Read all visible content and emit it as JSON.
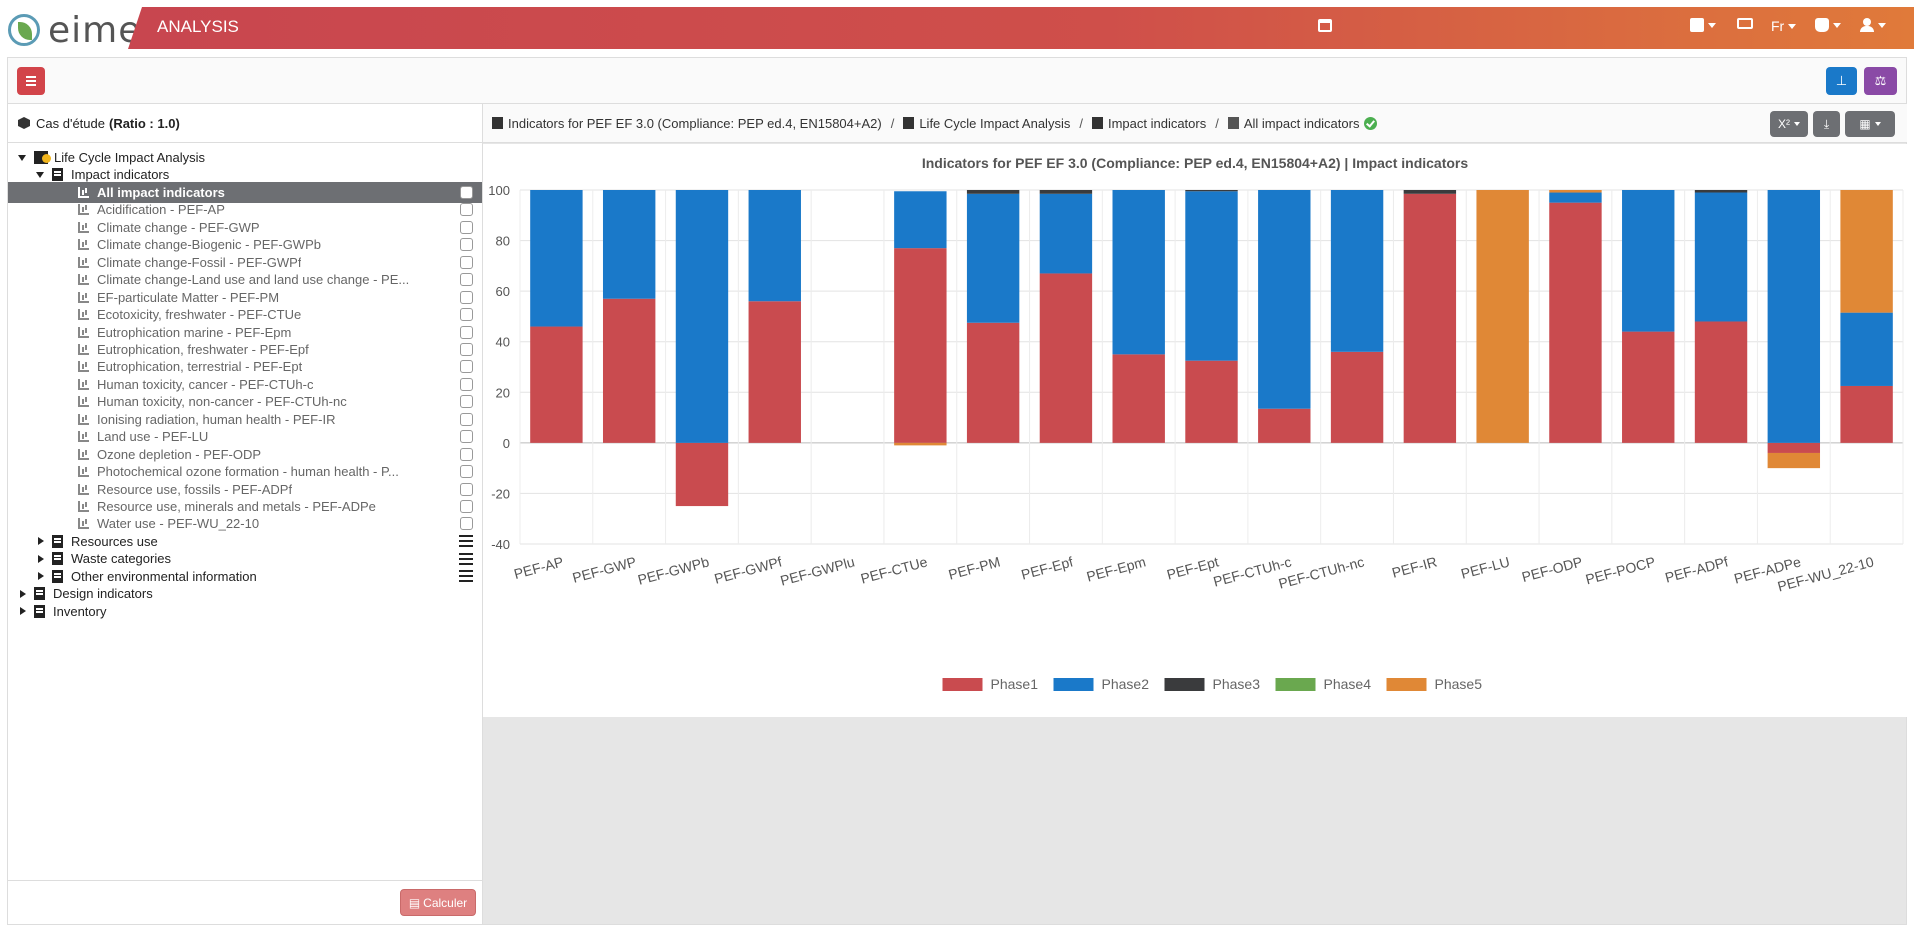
{
  "topbar": {
    "logo_text": "eime",
    "app_title": "ANALYSIS",
    "lang": "Fr"
  },
  "case": {
    "label": "Cas d'étude",
    "ratio": "(Ratio : 1.0)"
  },
  "tree": {
    "root": "Life Cycle Impact Analysis",
    "group": "Impact indicators",
    "items": [
      "All impact indicators",
      "Acidification - PEF-AP",
      "Climate change - PEF-GWP",
      "Climate change-Biogenic - PEF-GWPb",
      "Climate change-Fossil - PEF-GWPf",
      "Climate change-Land use and land use change - PE...",
      "EF-particulate Matter - PEF-PM",
      "Ecotoxicity, freshwater - PEF-CTUe",
      "Eutrophication marine - PEF-Epm",
      "Eutrophication, freshwater - PEF-Epf",
      "Eutrophication, terrestrial - PEF-Ept",
      "Human toxicity, cancer - PEF-CTUh-c",
      "Human toxicity, non-cancer - PEF-CTUh-nc",
      "Ionising radiation, human health - PEF-IR",
      "Land use - PEF-LU",
      "Ozone depletion - PEF-ODP",
      "Photochemical ozone formation - human health - P...",
      "Resource use, fossils - PEF-ADPf",
      "Resource use, minerals and metals - PEF-ADPe",
      "Water use - PEF-WU_22-10"
    ],
    "subgroups": [
      "Resources use",
      "Waste categories",
      "Other environmental information"
    ],
    "top_groups": [
      "Design indicators",
      "Inventory"
    ]
  },
  "calc_button": "Calculer",
  "breadcrumb": [
    "Indicators for PEF EF 3.0 (Compliance: PEP ed.4, EN15804+A2)",
    "Life Cycle Impact Analysis",
    "Impact indicators",
    "All impact indicators"
  ],
  "toolbar_right": {
    "x2_label": "X²"
  },
  "chart_data": {
    "type": "bar",
    "stacked": true,
    "title": "Indicators for PEF EF 3.0 (Compliance: PEP ed.4, EN15804+A2) | Impact indicators",
    "categories": [
      "PEF-AP",
      "PEF-GWP",
      "PEF-GWPb",
      "PEF-GWPf",
      "PEF-GWPlu",
      "PEF-CTUe",
      "PEF-PM",
      "PEF-Epf",
      "PEF-Epm",
      "PEF-Ept",
      "PEF-CTUh-c",
      "PEF-CTUh-nc",
      "PEF-IR",
      "PEF-LU",
      "PEF-ODP",
      "PEF-POCP",
      "PEF-ADPf",
      "PEF-ADPe",
      "PEF-WU_22-10"
    ],
    "ylim": [
      -40,
      100
    ],
    "yticks": [
      100,
      80,
      60,
      40,
      20,
      0,
      -20,
      -40
    ],
    "grid": true,
    "legend_position": "bottom",
    "series": [
      {
        "name": "Phase1",
        "color": "#c94b4f",
        "values": [
          46,
          57,
          -25,
          56,
          0,
          77,
          47.5,
          67,
          35,
          32.5,
          13.5,
          36,
          98.5,
          0,
          95,
          44,
          48,
          -4,
          22.5
        ]
      },
      {
        "name": "Phase2",
        "color": "#1a79c9",
        "values": [
          54,
          43,
          100,
          44,
          0,
          22.5,
          51,
          31.5,
          65,
          67,
          86.5,
          64,
          0,
          0,
          4,
          56,
          51,
          100,
          29
        ]
      },
      {
        "name": "Phase3",
        "color": "#3a3b3d",
        "values": [
          0,
          0,
          0,
          0,
          0,
          0,
          1.5,
          1.5,
          0,
          0.5,
          0,
          0,
          1.5,
          0,
          0,
          0,
          1,
          0,
          0
        ]
      },
      {
        "name": "Phase4",
        "color": "#6aa84f",
        "values": [
          0,
          0,
          0,
          0,
          0,
          0,
          0,
          0,
          0,
          0,
          0,
          0,
          0,
          0,
          0,
          0,
          0,
          0,
          0
        ]
      },
      {
        "name": "Phase5",
        "color": "#e08836",
        "values": [
          0,
          0,
          0,
          0,
          0,
          -1,
          0,
          0,
          0,
          0,
          0,
          0,
          0,
          100,
          1,
          0,
          0,
          -6,
          48.5
        ]
      }
    ]
  }
}
